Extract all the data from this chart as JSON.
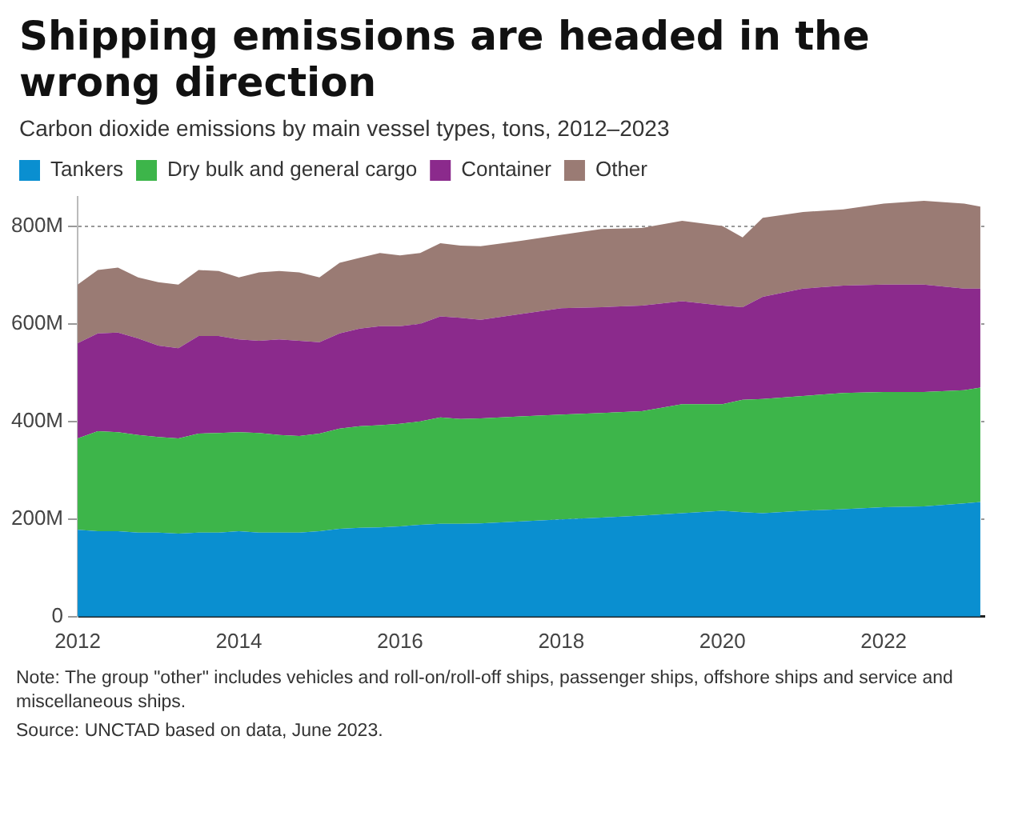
{
  "chart_data": {
    "type": "area",
    "title": "Shipping emissions are headed in the wrong direction",
    "subtitle": "Carbon dioxide emissions by main vessel types, tons, 2012–2023",
    "stacked": true,
    "legend": "top left",
    "grid": "y",
    "x": [
      2012,
      2012.25,
      2012.5,
      2012.75,
      2013,
      2013.25,
      2013.5,
      2013.75,
      2014,
      2014.25,
      2014.5,
      2014.75,
      2015,
      2015.25,
      2015.5,
      2015.75,
      2016,
      2016.25,
      2016.5,
      2016.75,
      2017,
      2017.5,
      2018,
      2018.5,
      2019,
      2019.5,
      2020,
      2020.25,
      2020.5,
      2021,
      2021.5,
      2022,
      2022.5,
      2023,
      2023.2
    ],
    "xlim": [
      2012,
      2023.25
    ],
    "xticks": [
      2012,
      2014,
      2016,
      2018,
      2020,
      2022
    ],
    "ylim": [
      0,
      860
    ],
    "yticks": [
      0,
      {
        "value": 200,
        "label": "200M"
      },
      {
        "value": 400,
        "label": "400M"
      },
      {
        "value": 600,
        "label": "600M"
      },
      {
        "value": 800,
        "label": "800M"
      }
    ],
    "series": [
      {
        "name": "Tankers",
        "color": "#0a8fd0",
        "values": [
          178,
          175,
          175,
          172,
          172,
          170,
          172,
          172,
          175,
          172,
          172,
          172,
          175,
          180,
          182,
          183,
          185,
          188,
          190,
          190,
          191,
          195,
          199,
          203,
          207,
          212,
          217,
          214,
          212,
          217,
          220,
          224,
          226,
          232,
          235
        ]
      },
      {
        "name": "Dry bulk and general cargo",
        "color": "#3db54a",
        "values": [
          187,
          205,
          203,
          200,
          196,
          195,
          203,
          204,
          203,
          204,
          200,
          198,
          200,
          205,
          208,
          209,
          210,
          212,
          218,
          215,
          215,
          215,
          215,
          214,
          214,
          223,
          218,
          230,
          234,
          235,
          238,
          236,
          234,
          232,
          234
        ]
      },
      {
        "name": "Container",
        "color": "#8b2a8c",
        "values": [
          195,
          200,
          204,
          198,
          187,
          185,
          200,
          199,
          190,
          189,
          196,
          195,
          187,
          195,
          200,
          203,
          200,
          200,
          207,
          207,
          202,
          210,
          218,
          217,
          216,
          211,
          202,
          190,
          209,
          220,
          220,
          220,
          220,
          208,
          203
        ]
      },
      {
        "name": "Other",
        "color": "#9a7b74",
        "values": [
          120,
          130,
          133,
          125,
          130,
          130,
          135,
          133,
          127,
          140,
          140,
          140,
          133,
          145,
          145,
          150,
          145,
          145,
          150,
          148,
          151,
          150,
          150,
          160,
          159,
          165,
          163,
          143,
          162,
          157,
          156,
          166,
          172,
          174,
          168
        ]
      }
    ],
    "annotations": [
      "Note: The group \"other\" includes vehicles and roll-on/roll-off ships, passenger ships, offshore ships and service and miscellaneous ships.",
      "Source: UNCTAD based on data, June 2023."
    ]
  }
}
